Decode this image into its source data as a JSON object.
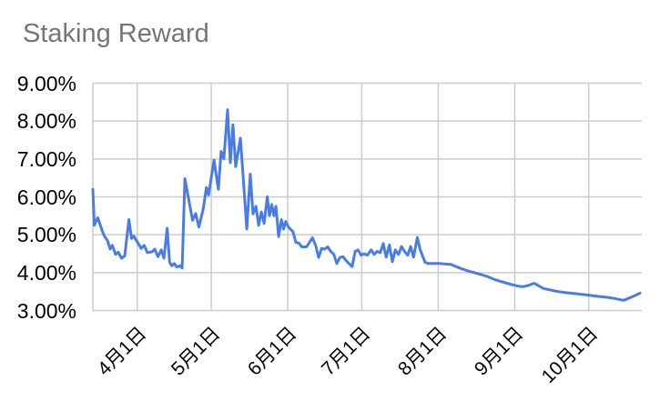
{
  "chart": {
    "title": "Staking Reward"
  },
  "chart_data": {
    "type": "line",
    "title": "Staking Reward",
    "unit": "%",
    "legend": "none",
    "grid": true,
    "colors": {
      "series": "#4a7ce5",
      "grid": "#cccccc",
      "title": "#757575",
      "axis_label": "#000000",
      "background": "#ffffff"
    },
    "y_axis": {
      "min": 3,
      "max": 9,
      "tick_step": 1,
      "tick_labels": [
        "3.00%",
        "4.00%",
        "5.00%",
        "6.00%",
        "7.00%",
        "8.00%",
        "9.00%"
      ]
    },
    "x_axis": {
      "domain": [
        0,
        222.5
      ],
      "ticks": [
        {
          "pos": 18,
          "label": "4月1日"
        },
        {
          "pos": 48,
          "label": "5月1日"
        },
        {
          "pos": 79,
          "label": "6月1日"
        },
        {
          "pos": 109,
          "label": "7月1日"
        },
        {
          "pos": 140,
          "label": "8月1日"
        },
        {
          "pos": 171,
          "label": "9月1日"
        },
        {
          "pos": 201,
          "label": "10月1日"
        }
      ]
    },
    "series": [
      {
        "name": "Staking Reward",
        "points": [
          [
            0,
            6.2
          ],
          [
            0.6,
            5.25
          ],
          [
            2,
            5.45
          ],
          [
            3.8,
            5.1
          ],
          [
            4.8,
            4.95
          ],
          [
            5.9,
            4.85
          ],
          [
            7,
            4.62
          ],
          [
            7.9,
            4.72
          ],
          [
            9.2,
            4.48
          ],
          [
            10.3,
            4.54
          ],
          [
            11.6,
            4.38
          ],
          [
            12.9,
            4.44
          ],
          [
            14.6,
            5.4
          ],
          [
            15.7,
            4.9
          ],
          [
            16.6,
            4.96
          ],
          [
            18.5,
            4.76
          ],
          [
            19.6,
            4.64
          ],
          [
            20.8,
            4.72
          ],
          [
            22.1,
            4.53
          ],
          [
            24,
            4.55
          ],
          [
            25.1,
            4.62
          ],
          [
            26.4,
            4.42
          ],
          [
            27.7,
            4.6
          ],
          [
            28.8,
            4.38
          ],
          [
            30.1,
            5.17
          ],
          [
            31.1,
            4.28
          ],
          [
            32,
            4.18
          ],
          [
            33,
            4.24
          ],
          [
            34,
            4.15
          ],
          [
            35.4,
            4.18
          ],
          [
            36.2,
            4.12
          ],
          [
            37.3,
            6.48
          ],
          [
            40.4,
            5.38
          ],
          [
            41.7,
            5.56
          ],
          [
            43,
            5.2
          ],
          [
            44.8,
            5.7
          ],
          [
            46,
            6.25
          ],
          [
            46.9,
            6.05
          ],
          [
            49.1,
            6.97
          ],
          [
            50.9,
            6.2
          ],
          [
            52,
            7.2
          ],
          [
            53.1,
            7.0
          ],
          [
            54.6,
            8.3
          ],
          [
            55.7,
            6.9
          ],
          [
            56.8,
            7.9
          ],
          [
            57.9,
            6.8
          ],
          [
            59.8,
            7.55
          ],
          [
            62.4,
            5.15
          ],
          [
            63.8,
            6.6
          ],
          [
            64.9,
            5.55
          ],
          [
            66.1,
            5.75
          ],
          [
            67.2,
            5.25
          ],
          [
            68.3,
            5.6
          ],
          [
            69.4,
            5.3
          ],
          [
            70.7,
            6.0
          ],
          [
            71.6,
            5.5
          ],
          [
            72.5,
            5.8
          ],
          [
            73.4,
            5.5
          ],
          [
            74.2,
            5.75
          ],
          [
            75.3,
            4.95
          ],
          [
            76.4,
            5.4
          ],
          [
            77.3,
            5.15
          ],
          [
            78.2,
            5.35
          ],
          [
            79.3,
            5.2
          ],
          [
            81.1,
            5.08
          ],
          [
            82.3,
            4.8
          ],
          [
            83.5,
            4.78
          ],
          [
            84.7,
            4.68
          ],
          [
            86.6,
            4.68
          ],
          [
            87.8,
            4.8
          ],
          [
            89,
            4.92
          ],
          [
            90.3,
            4.72
          ],
          [
            91.5,
            4.4
          ],
          [
            92.7,
            4.64
          ],
          [
            94,
            4.62
          ],
          [
            95.2,
            4.68
          ],
          [
            96.4,
            4.56
          ],
          [
            97.7,
            4.48
          ],
          [
            98.9,
            4.24
          ],
          [
            100.1,
            4.4
          ],
          [
            101.4,
            4.42
          ],
          [
            102.6,
            4.32
          ],
          [
            103.8,
            4.24
          ],
          [
            105.1,
            4.16
          ],
          [
            106.3,
            4.56
          ],
          [
            107.5,
            4.6
          ],
          [
            108.7,
            4.46
          ],
          [
            110,
            4.5
          ],
          [
            111.2,
            4.46
          ],
          [
            112.8,
            4.6
          ],
          [
            114,
            4.48
          ],
          [
            115.2,
            4.56
          ],
          [
            116.5,
            4.53
          ],
          [
            117.7,
            4.77
          ],
          [
            118.9,
            4.41
          ],
          [
            120.2,
            4.73
          ],
          [
            121.4,
            4.29
          ],
          [
            122.6,
            4.6
          ],
          [
            123.9,
            4.48
          ],
          [
            125.1,
            4.69
          ],
          [
            126.3,
            4.56
          ],
          [
            127.6,
            4.46
          ],
          [
            128.8,
            4.69
          ],
          [
            130,
            4.41
          ],
          [
            131.5,
            4.93
          ],
          [
            132.7,
            4.6
          ],
          [
            134.6,
            4.28
          ],
          [
            135.8,
            4.24
          ],
          [
            138.4,
            4.24
          ],
          [
            140.2,
            4.24
          ],
          [
            142.4,
            4.23
          ],
          [
            145,
            4.22
          ],
          [
            148.7,
            4.12
          ],
          [
            152.4,
            4.04
          ],
          [
            156.8,
            3.96
          ],
          [
            159.8,
            3.9
          ],
          [
            162.7,
            3.82
          ],
          [
            165.7,
            3.76
          ],
          [
            167.9,
            3.72
          ],
          [
            170.1,
            3.68
          ],
          [
            172.7,
            3.64
          ],
          [
            174.2,
            3.63
          ],
          [
            176.4,
            3.66
          ],
          [
            178.9,
            3.72
          ],
          [
            180.8,
            3.65
          ],
          [
            182.7,
            3.58
          ],
          [
            185.6,
            3.54
          ],
          [
            188.6,
            3.5
          ],
          [
            191.9,
            3.47
          ],
          [
            194.8,
            3.45
          ],
          [
            197.8,
            3.43
          ],
          [
            200.4,
            3.41
          ],
          [
            204.1,
            3.38
          ],
          [
            208.1,
            3.35
          ],
          [
            211.4,
            3.32
          ],
          [
            215.1,
            3.27
          ],
          [
            218.5,
            3.36
          ],
          [
            221.8,
            3.46
          ]
        ]
      }
    ]
  }
}
